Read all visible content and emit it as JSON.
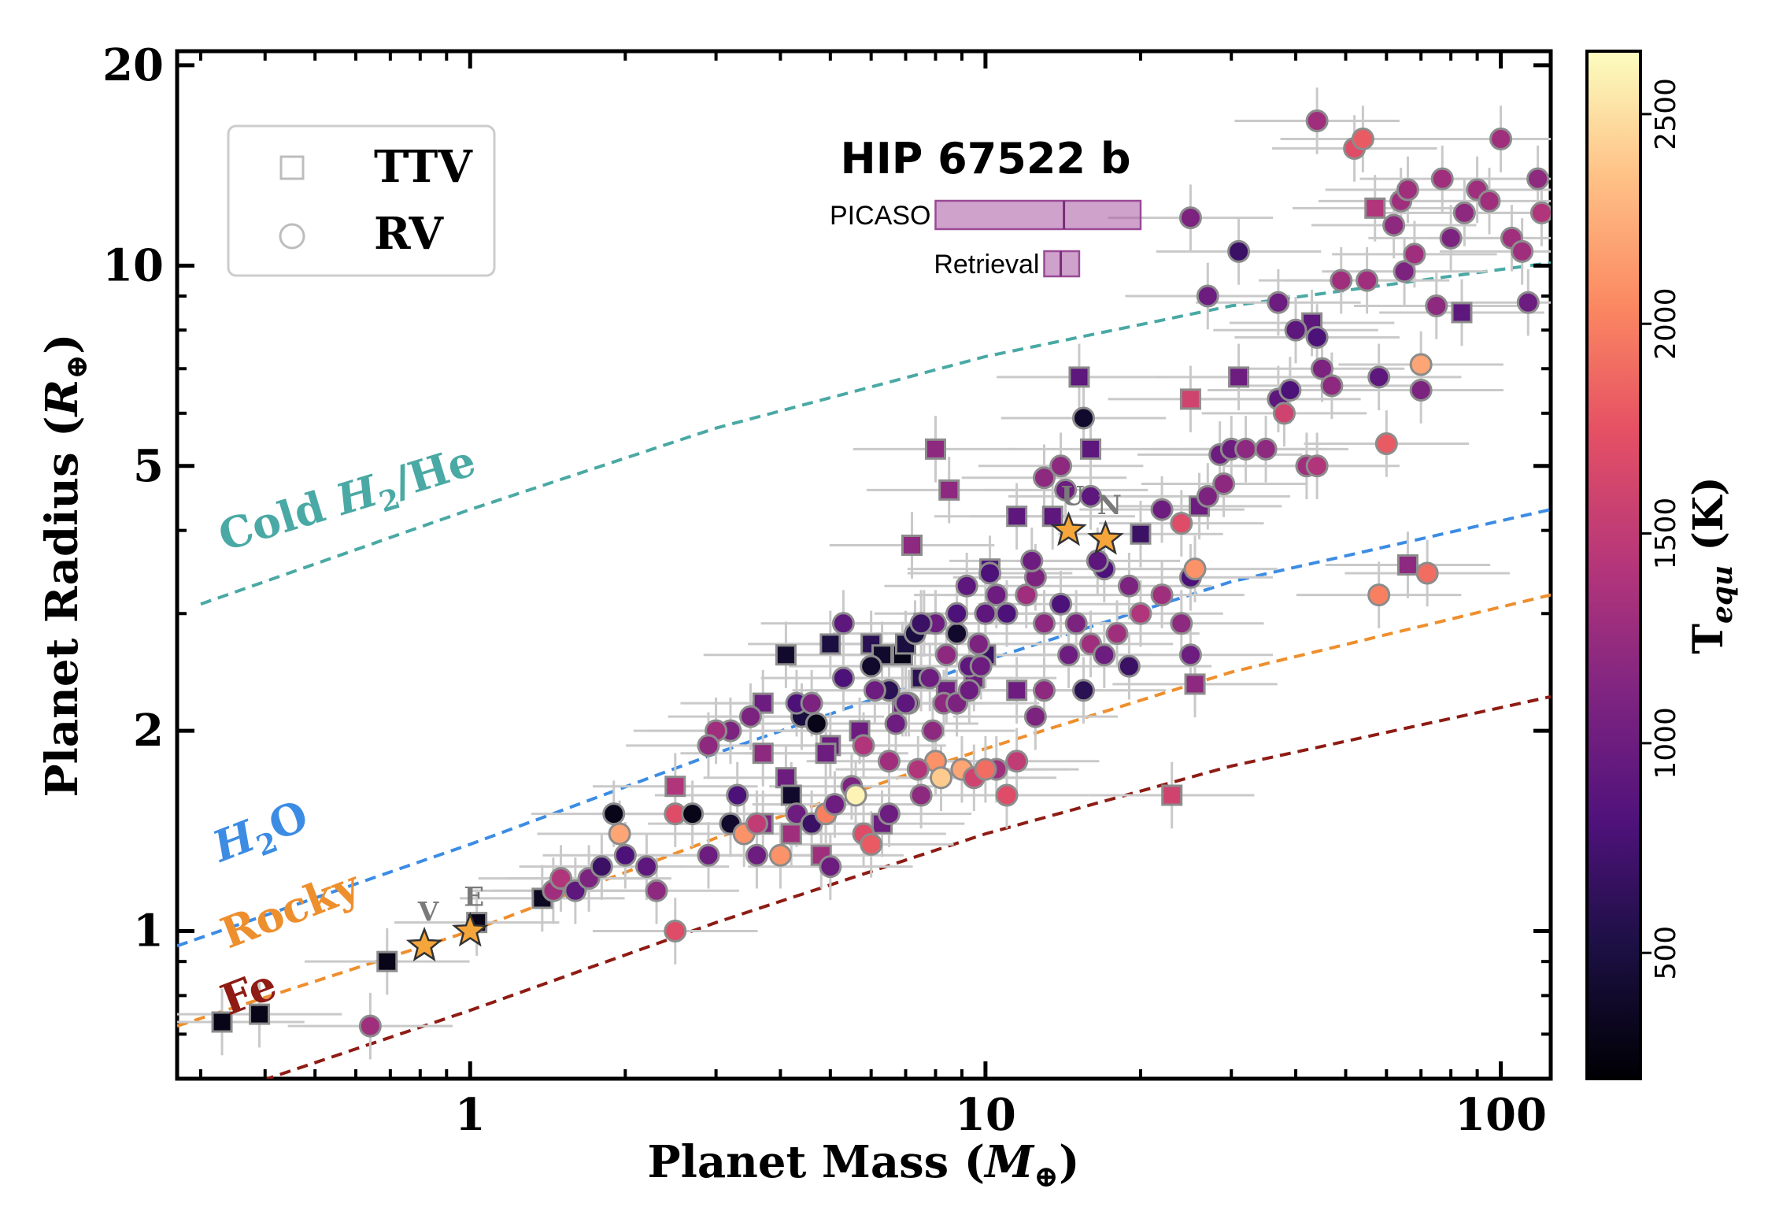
{
  "chart_data": {
    "type": "scatter",
    "xlabel": "Planet Mass (M⊕)",
    "ylabel": "Planet Radius (R⊕)",
    "xscale": "log",
    "yscale": "log",
    "xlim": [
      0.27,
      125
    ],
    "ylim": [
      0.6,
      21
    ],
    "x_ticks": [
      {
        "value": 1,
        "label": "1"
      },
      {
        "value": 10,
        "label": "10"
      },
      {
        "value": 100,
        "label": "100"
      }
    ],
    "y_ticks": [
      {
        "value": 1,
        "label": "1"
      },
      {
        "value": 2,
        "label": "2"
      },
      {
        "value": 5,
        "label": "5"
      },
      {
        "value": 10,
        "label": "10"
      },
      {
        "value": 20,
        "label": "20"
      }
    ],
    "colorbar": {
      "label": "T",
      "label_sub": "equ",
      "label_unit": " (K)",
      "range": [
        200,
        2650
      ],
      "ticks": [
        500,
        1000,
        1500,
        2000,
        2500
      ],
      "colormap": "magma"
    },
    "legend": {
      "position": "top-left",
      "entries": [
        {
          "marker": "square",
          "label": "TTV"
        },
        {
          "marker": "circle",
          "label": "RV"
        }
      ]
    },
    "curves": [
      {
        "name": "Cold H₂/He",
        "color": "#4aa9a4",
        "label_parts": [
          "Cold ",
          "H",
          "2",
          "/He"
        ],
        "points": [
          [
            0.3,
            3.1
          ],
          [
            1,
            4.3
          ],
          [
            3,
            5.7
          ],
          [
            10,
            7.3
          ],
          [
            30,
            8.7
          ],
          [
            125,
            10.1
          ]
        ]
      },
      {
        "name": "H₂O",
        "color": "#3c8ce4",
        "label_parts": [
          "H",
          "2",
          "O"
        ],
        "points": [
          [
            0.27,
            0.95
          ],
          [
            1,
            1.35
          ],
          [
            3,
            1.85
          ],
          [
            10,
            2.55
          ],
          [
            30,
            3.35
          ],
          [
            125,
            4.3
          ]
        ]
      },
      {
        "name": "Rocky",
        "color": "#ee8f2e",
        "label_parts": [
          "Rocky"
        ],
        "points": [
          [
            0.27,
            0.72
          ],
          [
            1,
            1.0
          ],
          [
            3,
            1.38
          ],
          [
            10,
            1.88
          ],
          [
            30,
            2.45
          ],
          [
            125,
            3.2
          ]
        ]
      },
      {
        "name": "Fe",
        "color": "#8e1c14",
        "label_parts": [
          "Fe"
        ],
        "points": [
          [
            0.27,
            0.54
          ],
          [
            1,
            0.76
          ],
          [
            3,
            1.03
          ],
          [
            10,
            1.4
          ],
          [
            30,
            1.77
          ],
          [
            125,
            2.25
          ]
        ]
      }
    ],
    "solar_system": [
      {
        "name": "V",
        "mass": 0.815,
        "radius": 0.95
      },
      {
        "name": "E",
        "mass": 1.0,
        "radius": 1.0
      },
      {
        "name": "U",
        "mass": 14.5,
        "radius": 4.0
      },
      {
        "name": "N",
        "mass": 17.1,
        "radius": 3.88
      }
    ],
    "highlight": {
      "title": "HIP 67522 b",
      "estimates": [
        {
          "label": "PICASO",
          "mass_low": 8,
          "mass_high": 20,
          "mass_mid": 14.2
        },
        {
          "label": "Retrieval",
          "mass_low": 13,
          "mass_high": 15.2,
          "mass_mid": 14
        }
      ]
    },
    "ttv_points": [
      [
        0.33,
        0.73,
        300
      ],
      [
        0.39,
        0.75,
        300
      ],
      [
        0.69,
        0.9,
        300
      ],
      [
        1.03,
        1.03,
        300
      ],
      [
        1.38,
        1.12,
        350
      ],
      [
        4.1,
        2.6,
        400
      ],
      [
        5.0,
        2.7,
        500
      ],
      [
        6.0,
        2.7,
        600
      ],
      [
        6.3,
        2.6,
        400
      ],
      [
        6.9,
        2.6,
        300
      ],
      [
        7.0,
        2.7,
        500
      ],
      [
        7.5,
        2.4,
        600
      ],
      [
        7.6,
        2.9,
        1000
      ],
      [
        8.0,
        5.3,
        1200
      ],
      [
        8.5,
        4.6,
        1200
      ],
      [
        7.2,
        3.8,
        1200
      ],
      [
        10.2,
        3.5,
        800
      ],
      [
        11.5,
        4.2,
        900
      ],
      [
        11.5,
        2.3,
        1000
      ],
      [
        10.0,
        2.6,
        700
      ],
      [
        9.5,
        2.4,
        1000
      ],
      [
        8.4,
        2.3,
        1000
      ],
      [
        6.9,
        2.2,
        1000
      ],
      [
        5.7,
        2.0,
        1000
      ],
      [
        5.0,
        1.9,
        1000
      ],
      [
        3.7,
        2.2,
        1000
      ],
      [
        3.7,
        1.85,
        1200
      ],
      [
        4.1,
        1.7,
        1000
      ],
      [
        4.2,
        1.6,
        400
      ],
      [
        4.9,
        1.85,
        1000
      ],
      [
        2.5,
        1.65,
        1400
      ],
      [
        3.7,
        1.45,
        1100
      ],
      [
        4.2,
        1.4,
        1300
      ],
      [
        4.8,
        1.3,
        1300
      ],
      [
        6.3,
        1.45,
        1000
      ],
      [
        13.5,
        4.2,
        900
      ],
      [
        15.2,
        6.8,
        900
      ],
      [
        16.0,
        5.3,
        900
      ],
      [
        20.0,
        3.95,
        700
      ],
      [
        23.0,
        1.6,
        1600
      ],
      [
        25.5,
        2.35,
        1200
      ],
      [
        26.0,
        4.35,
        1000
      ],
      [
        31.0,
        6.8,
        1000
      ],
      [
        43.0,
        8.2,
        900
      ],
      [
        25.0,
        6.3,
        1600
      ],
      [
        66.0,
        3.55,
        1200
      ],
      [
        84.0,
        8.5,
        900
      ],
      [
        57.0,
        12.2,
        1400
      ]
    ],
    "rv_points": [
      [
        0.64,
        0.72,
        1300
      ],
      [
        1.9,
        1.5,
        300
      ],
      [
        1.95,
        1.4,
        2200
      ],
      [
        2.0,
        1.3,
        800
      ],
      [
        2.5,
        1.5,
        1700
      ],
      [
        2.5,
        1.0,
        1700
      ],
      [
        2.7,
        1.5,
        300
      ],
      [
        2.9,
        1.3,
        1000
      ],
      [
        3.2,
        1.45,
        400
      ],
      [
        3.3,
        1.6,
        800
      ],
      [
        3.4,
        1.4,
        2100
      ],
      [
        3.6,
        1.3,
        1000
      ],
      [
        3.2,
        2.0,
        1100
      ],
      [
        3.5,
        2.1,
        1100
      ],
      [
        4.3,
        1.5,
        1000
      ],
      [
        4.6,
        1.45,
        700
      ],
      [
        4.9,
        1.5,
        2000
      ],
      [
        4.4,
        2.1,
        500
      ],
      [
        4.7,
        2.05,
        300
      ],
      [
        5.5,
        1.65,
        1100
      ],
      [
        5.6,
        1.6,
        2600
      ],
      [
        5.8,
        1.4,
        1700
      ],
      [
        6.5,
        1.5,
        1000
      ],
      [
        7.5,
        1.6,
        1200
      ],
      [
        8.0,
        1.8,
        2100
      ],
      [
        8.2,
        1.7,
        2400
      ],
      [
        9.0,
        1.75,
        2200
      ],
      [
        10.5,
        1.75,
        1300
      ],
      [
        11.0,
        1.6,
        1700
      ],
      [
        11.5,
        1.8,
        1500
      ],
      [
        1.45,
        1.15,
        1300
      ],
      [
        1.5,
        1.2,
        1400
      ],
      [
        1.6,
        1.15,
        900
      ],
      [
        1.7,
        1.2,
        1100
      ],
      [
        1.8,
        1.25,
        700
      ],
      [
        2.2,
        1.25,
        900
      ],
      [
        2.3,
        1.15,
        1200
      ],
      [
        4.0,
        1.3,
        2100
      ],
      [
        5.0,
        1.25,
        1000
      ],
      [
        6.0,
        1.35,
        1800
      ],
      [
        5.3,
        2.9,
        900
      ],
      [
        6.0,
        2.5,
        400
      ],
      [
        6.5,
        2.3,
        600
      ],
      [
        7.3,
        2.8,
        500
      ],
      [
        7.8,
        2.4,
        1000
      ],
      [
        8.4,
        2.6,
        1200
      ],
      [
        8.8,
        2.8,
        400
      ],
      [
        9.3,
        2.5,
        900
      ],
      [
        9.7,
        2.7,
        1100
      ],
      [
        10.0,
        3.0,
        900
      ],
      [
        10.5,
        3.2,
        1000
      ],
      [
        11.0,
        3.0,
        800
      ],
      [
        12.0,
        3.2,
        1300
      ],
      [
        12.5,
        3.4,
        1100
      ],
      [
        13.0,
        2.9,
        1200
      ],
      [
        14.0,
        3.1,
        800
      ],
      [
        14.5,
        2.6,
        1000
      ],
      [
        15.0,
        2.9,
        1100
      ],
      [
        16.0,
        2.7,
        1300
      ],
      [
        17.0,
        3.5,
        800
      ],
      [
        18.0,
        2.8,
        1300
      ],
      [
        19.0,
        3.3,
        1100
      ],
      [
        20.0,
        3.0,
        1400
      ],
      [
        19.0,
        2.5,
        700
      ],
      [
        22.0,
        3.2,
        1300
      ],
      [
        24.0,
        2.9,
        1200
      ],
      [
        25.0,
        3.4,
        800
      ],
      [
        25.5,
        3.5,
        2100
      ],
      [
        25.0,
        2.6,
        1000
      ],
      [
        24.0,
        4.1,
        1700
      ],
      [
        22.0,
        4.3,
        1000
      ],
      [
        27.0,
        4.5,
        1100
      ],
      [
        29.0,
        4.7,
        1200
      ],
      [
        28.5,
        5.2,
        1000
      ],
      [
        30.0,
        5.3,
        1000
      ],
      [
        32.0,
        5.3,
        1200
      ],
      [
        35.0,
        5.3,
        1200
      ],
      [
        37.0,
        6.3,
        900
      ],
      [
        38.0,
        6.0,
        1600
      ],
      [
        39.0,
        6.5,
        800
      ],
      [
        42.0,
        5.0,
        1300
      ],
      [
        44.0,
        5.0,
        1400
      ],
      [
        40.0,
        8.0,
        900
      ],
      [
        44.0,
        7.8,
        800
      ],
      [
        45.0,
        7.0,
        1100
      ],
      [
        47.0,
        6.6,
        1200
      ],
      [
        49.0,
        9.5,
        1300
      ],
      [
        55.0,
        9.5,
        1300
      ],
      [
        58.0,
        6.8,
        900
      ],
      [
        60.0,
        5.4,
        1800
      ],
      [
        65.0,
        9.8,
        1100
      ],
      [
        68.0,
        10.4,
        1300
      ],
      [
        70.0,
        6.5,
        1100
      ],
      [
        70.0,
        7.1,
        2200
      ],
      [
        72.0,
        3.45,
        1900
      ],
      [
        58.0,
        3.2,
        2000
      ],
      [
        75.0,
        8.7,
        1200
      ],
      [
        77.0,
        13.5,
        1300
      ],
      [
        80.0,
        11.0,
        1100
      ],
      [
        85.0,
        12.0,
        1200
      ],
      [
        90.0,
        13.0,
        1300
      ],
      [
        95.0,
        12.5,
        1300
      ],
      [
        100.0,
        15.5,
        1300
      ],
      [
        105.0,
        11.0,
        1300
      ],
      [
        110.0,
        10.5,
        1300
      ],
      [
        113.0,
        8.8,
        1000
      ],
      [
        118.0,
        13.5,
        1200
      ],
      [
        120.0,
        12.0,
        1400
      ],
      [
        62.0,
        11.5,
        1200
      ],
      [
        64.0,
        12.5,
        1300
      ],
      [
        66.0,
        13.0,
        1300
      ],
      [
        52.0,
        15.0,
        1700
      ],
      [
        54.0,
        15.5,
        1800
      ],
      [
        44.0,
        16.5,
        1300
      ],
      [
        25.0,
        11.8,
        1100
      ],
      [
        31.0,
        10.5,
        700
      ],
      [
        27.0,
        9.0,
        1000
      ],
      [
        37.0,
        8.8,
        1000
      ],
      [
        15.5,
        5.9,
        400
      ],
      [
        16.0,
        4.5,
        900
      ],
      [
        16.5,
        3.6,
        900
      ],
      [
        14.3,
        4.6,
        1000
      ],
      [
        14.0,
        5.0,
        1200
      ],
      [
        13.0,
        4.8,
        1200
      ],
      [
        12.3,
        3.6,
        1000
      ],
      [
        10.2,
        3.45,
        800
      ],
      [
        9.2,
        3.3,
        900
      ],
      [
        8.8,
        3.0,
        800
      ],
      [
        8.0,
        2.9,
        1000
      ],
      [
        7.5,
        2.9,
        700
      ],
      [
        4.3,
        2.2,
        800
      ],
      [
        4.6,
        2.2,
        1100
      ],
      [
        3.0,
        2.0,
        1300
      ],
      [
        2.9,
        1.9,
        1200
      ],
      [
        5.1,
        1.55,
        1000
      ],
      [
        5.3,
        2.4,
        800
      ],
      [
        6.1,
        2.3,
        1000
      ],
      [
        7.1,
        2.2,
        1100
      ],
      [
        7.9,
        2.0,
        1200
      ],
      [
        8.3,
        2.2,
        1200
      ],
      [
        8.8,
        2.2,
        1100
      ],
      [
        9.3,
        2.3,
        1000
      ],
      [
        9.8,
        2.5,
        1000
      ],
      [
        12.5,
        2.1,
        1100
      ],
      [
        13.0,
        2.3,
        1200
      ],
      [
        15.5,
        2.3,
        600
      ],
      [
        17.0,
        2.6,
        1000
      ],
      [
        3.6,
        1.45,
        1500
      ],
      [
        7.4,
        1.75,
        1400
      ],
      [
        9.5,
        1.7,
        1600
      ],
      [
        10.0,
        1.75,
        1900
      ],
      [
        7.0,
        2.2,
        900
      ],
      [
        6.7,
        2.05,
        1000
      ],
      [
        6.5,
        1.8,
        1300
      ],
      [
        5.8,
        1.9,
        1400
      ]
    ]
  }
}
